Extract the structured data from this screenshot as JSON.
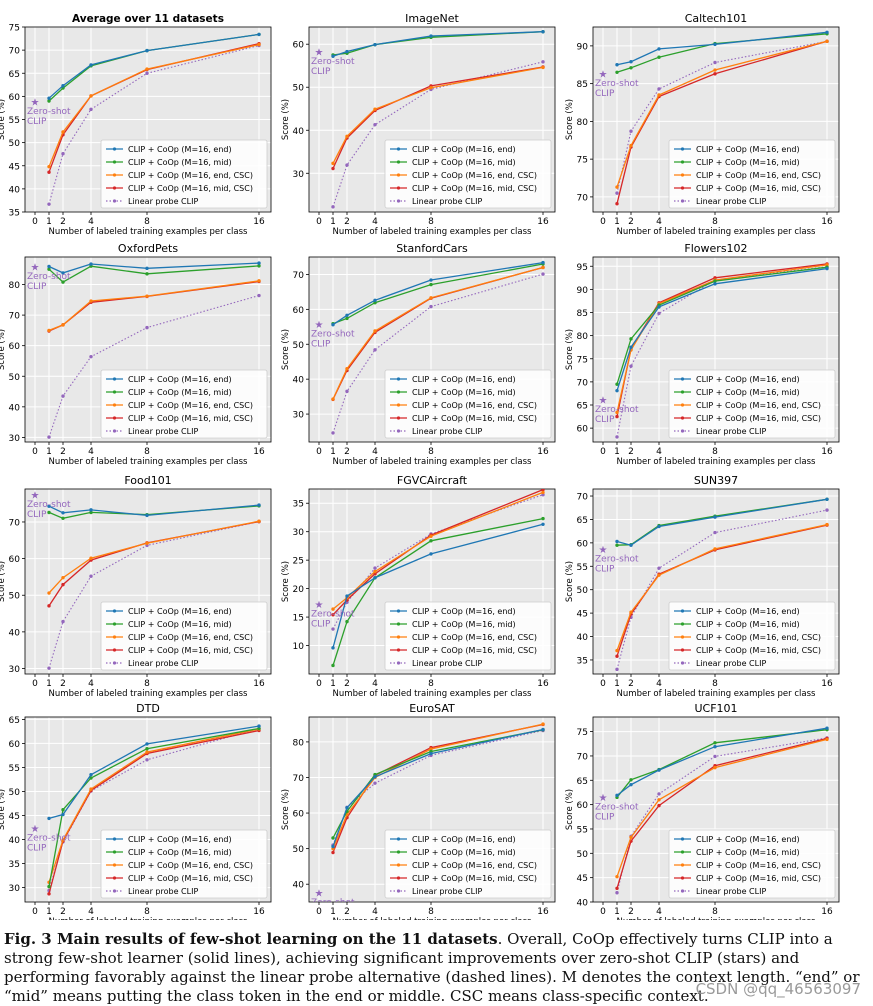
{
  "caption": {
    "lead": "Fig. 3 Main results of few-shot learning on the 11 datasets",
    "text": ". Overall, CoOp effectively turns CLIP into a strong few-shot learner (solid lines), achieving significant improvements over zero-shot CLIP (stars) and performing favorably against the linear probe alternative (dashed lines). M denotes the context length. “end” or “mid” means putting the class token in the end or middle. CSC means class-specific context."
  },
  "watermark": "CSDN @qq_46563097",
  "legend_labels": [
    "CLIP + CoOp (M=16, end)",
    "CLIP + CoOp (M=16, mid)",
    "CLIP + CoOp (M=16, end, CSC)",
    "CLIP + CoOp (M=16, mid, CSC)",
    "Linear probe CLIP"
  ],
  "series_colors": [
    "#1f77b4",
    "#2ca02c",
    "#ff7f0e",
    "#d62728",
    "#9467bd"
  ],
  "zero_shot_label": "Zero-shot CLIP",
  "chart_data": [
    {
      "type": "line",
      "title": "Average over 11 datasets",
      "title_bold": true,
      "xlabel": "Number of labeled training examples per class",
      "ylabel": "Score (%)",
      "x": [
        1,
        2,
        4,
        8,
        16
      ],
      "xticks": [
        0,
        1,
        2,
        4,
        8,
        16
      ],
      "ylim": [
        35,
        75
      ],
      "yticks": [
        35,
        40,
        45,
        50,
        55,
        60,
        65,
        70,
        75
      ],
      "zero_shot": 58.8,
      "series": [
        {
          "name": "CLIP + CoOp (M=16, end)",
          "values": [
            59.6,
            62.3,
            66.8,
            69.9,
            73.4
          ]
        },
        {
          "name": "CLIP + CoOp (M=16, mid)",
          "values": [
            59.0,
            61.8,
            66.6,
            69.9,
            73.4
          ]
        },
        {
          "name": "CLIP + CoOp (M=16, end, CSC)",
          "values": [
            44.8,
            52.3,
            60.1,
            65.9,
            71.2
          ]
        },
        {
          "name": "CLIP + CoOp (M=16, mid, CSC)",
          "values": [
            43.6,
            51.7,
            60.1,
            65.8,
            71.4
          ]
        },
        {
          "name": "Linear probe CLIP",
          "values": [
            36.7,
            47.6,
            57.2,
            65.0,
            71.0
          ]
        }
      ]
    },
    {
      "type": "line",
      "title": "ImageNet",
      "title_bold": false,
      "xlabel": "Number of labeled training examples per class",
      "ylabel": "Score (%)",
      "x": [
        1,
        2,
        4,
        8,
        16
      ],
      "xticks": [
        0,
        1,
        2,
        4,
        8,
        16
      ],
      "ylim": [
        21,
        64
      ],
      "yticks": [
        30,
        40,
        50,
        60
      ],
      "zero_shot": 58.2,
      "series": [
        {
          "name": "CLIP + CoOp (M=16, end)",
          "values": [
            57.2,
            58.3,
            59.9,
            61.9,
            62.9
          ]
        },
        {
          "name": "CLIP + CoOp (M=16, mid)",
          "values": [
            57.5,
            57.9,
            59.9,
            61.6,
            62.9
          ]
        },
        {
          "name": "CLIP + CoOp (M=16, end, CSC)",
          "values": [
            32.3,
            38.6,
            44.9,
            49.9,
            54.6
          ]
        },
        {
          "name": "CLIP + CoOp (M=16, mid, CSC)",
          "values": [
            31.1,
            38.2,
            44.6,
            50.3,
            54.7
          ]
        },
        {
          "name": "Linear probe CLIP",
          "values": [
            22.2,
            31.9,
            41.3,
            49.5,
            55.9
          ]
        }
      ]
    },
    {
      "type": "line",
      "title": "Caltech101",
      "title_bold": false,
      "xlabel": "Number of labeled training examples per class",
      "ylabel": "Score (%)",
      "x": [
        1,
        2,
        4,
        8,
        16
      ],
      "xticks": [
        0,
        1,
        2,
        4,
        8,
        16
      ],
      "ylim": [
        68,
        92.5
      ],
      "yticks": [
        70,
        75,
        80,
        85,
        90
      ],
      "zero_shot": 86.3,
      "series": [
        {
          "name": "CLIP + CoOp (M=16, end)",
          "values": [
            87.5,
            87.9,
            89.6,
            90.2,
            91.8
          ]
        },
        {
          "name": "CLIP + CoOp (M=16, mid)",
          "values": [
            86.5,
            87.1,
            88.5,
            90.3,
            91.6
          ]
        },
        {
          "name": "CLIP + CoOp (M=16, end, CSC)",
          "values": [
            71.3,
            76.8,
            83.5,
            86.8,
            90.6
          ]
        },
        {
          "name": "CLIP + CoOp (M=16, mid, CSC)",
          "values": [
            69.1,
            76.6,
            83.3,
            86.3,
            90.6
          ]
        },
        {
          "name": "Linear probe CLIP",
          "values": [
            70.5,
            78.7,
            84.3,
            87.8,
            90.6
          ]
        }
      ]
    },
    {
      "type": "line",
      "title": "OxfordPets",
      "title_bold": false,
      "xlabel": "Number of labeled training examples per class",
      "ylabel": "Score (%)",
      "x": [
        1,
        2,
        4,
        8,
        16
      ],
      "xticks": [
        0,
        1,
        2,
        4,
        8,
        16
      ],
      "ylim": [
        28.5,
        89
      ],
      "yticks": [
        30,
        40,
        50,
        60,
        70,
        80
      ],
      "zero_shot": 85.8,
      "series": [
        {
          "name": "CLIP + CoOp (M=16, end)",
          "values": [
            85.9,
            83.8,
            86.7,
            85.3,
            87.0
          ]
        },
        {
          "name": "CLIP + CoOp (M=16, mid)",
          "values": [
            85.0,
            80.8,
            86.0,
            83.5,
            86.1
          ]
        },
        {
          "name": "CLIP + CoOp (M=16, end, CSC)",
          "values": [
            65.0,
            66.8,
            74.6,
            76.2,
            81.2
          ]
        },
        {
          "name": "CLIP + CoOp (M=16, mid, CSC)",
          "values": [
            64.8,
            66.8,
            74.2,
            76.1,
            81.0
          ]
        },
        {
          "name": "Linear probe CLIP",
          "values": [
            30.1,
            43.5,
            56.4,
            65.9,
            76.4
          ]
        }
      ]
    },
    {
      "type": "line",
      "title": "StanfordCars",
      "title_bold": false,
      "xlabel": "Number of labeled training examples per class",
      "ylabel": "Score (%)",
      "x": [
        1,
        2,
        4,
        8,
        16
      ],
      "xticks": [
        0,
        1,
        2,
        4,
        8,
        16
      ],
      "ylim": [
        22,
        75
      ],
      "yticks": [
        30,
        40,
        50,
        60,
        70
      ],
      "zero_shot": 55.6,
      "series": [
        {
          "name": "CLIP + CoOp (M=16, end)",
          "values": [
            55.6,
            58.3,
            62.6,
            68.4,
            73.4
          ]
        },
        {
          "name": "CLIP + CoOp (M=16, mid)",
          "values": [
            55.9,
            57.4,
            61.9,
            67.1,
            73.0
          ]
        },
        {
          "name": "CLIP + CoOp (M=16, end, CSC)",
          "values": [
            34.3,
            43.0,
            53.8,
            63.3,
            72.0
          ]
        },
        {
          "name": "CLIP + CoOp (M=16, mid, CSC)",
          "values": [
            34.2,
            42.5,
            53.4,
            63.2,
            72.0
          ]
        },
        {
          "name": "Linear probe CLIP",
          "values": [
            24.6,
            36.5,
            48.4,
            60.8,
            70.1
          ]
        }
      ]
    },
    {
      "type": "line",
      "title": "Flowers102",
      "title_bold": false,
      "xlabel": "Number of labeled training examples per class",
      "ylabel": "Score (%)",
      "x": [
        1,
        2,
        4,
        8,
        16
      ],
      "xticks": [
        0,
        1,
        2,
        4,
        8,
        16
      ],
      "ylim": [
        57,
        97
      ],
      "yticks": [
        60,
        65,
        70,
        75,
        80,
        85,
        90,
        95
      ],
      "zero_shot": 66.1,
      "series": [
        {
          "name": "CLIP + CoOp (M=16, end)",
          "values": [
            68.1,
            77.5,
            86.2,
            91.2,
            94.5
          ]
        },
        {
          "name": "CLIP + CoOp (M=16, mid)",
          "values": [
            69.5,
            79.3,
            86.6,
            91.8,
            94.8
          ]
        },
        {
          "name": "CLIP + CoOp (M=16, end, CSC)",
          "values": [
            63.4,
            76.9,
            86.9,
            92.0,
            95.3
          ]
        },
        {
          "name": "CLIP + CoOp (M=16, mid, CSC)",
          "values": [
            62.5,
            77.1,
            87.1,
            92.5,
            95.5
          ]
        },
        {
          "name": "Linear probe CLIP",
          "values": [
            58.1,
            73.4,
            84.8,
            92.0,
            94.9
          ]
        }
      ]
    },
    {
      "type": "line",
      "title": "Food101",
      "title_bold": false,
      "xlabel": "Number of labeled training examples per class",
      "ylabel": "Score (%)",
      "x": [
        1,
        2,
        4,
        8,
        16
      ],
      "xticks": [
        0,
        1,
        2,
        4,
        8,
        16
      ],
      "ylim": [
        28.5,
        79
      ],
      "yticks": [
        30,
        40,
        50,
        60,
        70
      ],
      "zero_shot": 77.3,
      "series": [
        {
          "name": "CLIP + CoOp (M=16, end)",
          "values": [
            74.3,
            72.5,
            73.3,
            71.8,
            74.6
          ]
        },
        {
          "name": "CLIP + CoOp (M=16, mid)",
          "values": [
            72.6,
            71.0,
            72.6,
            72.0,
            74.4
          ]
        },
        {
          "name": "CLIP + CoOp (M=16, end, CSC)",
          "values": [
            50.6,
            54.8,
            60.1,
            64.2,
            70.2
          ]
        },
        {
          "name": "CLIP + CoOp (M=16, mid, CSC)",
          "values": [
            47.1,
            52.9,
            59.6,
            64.3,
            70.1
          ]
        },
        {
          "name": "Linear probe CLIP",
          "values": [
            30.1,
            42.8,
            55.2,
            63.6,
            70.1
          ]
        }
      ]
    },
    {
      "type": "line",
      "title": "FGVCAircraft",
      "title_bold": false,
      "xlabel": "Number of labeled training examples per class",
      "ylabel": "Score (%)",
      "x": [
        1,
        2,
        4,
        8,
        16
      ],
      "xticks": [
        0,
        1,
        2,
        4,
        8,
        16
      ],
      "ylim": [
        5,
        37.5
      ],
      "yticks": [
        10,
        15,
        20,
        25,
        30,
        35
      ],
      "zero_shot": 17.2,
      "series": [
        {
          "name": "CLIP + CoOp (M=16, end)",
          "values": [
            9.6,
            18.7,
            21.9,
            26.1,
            31.3
          ]
        },
        {
          "name": "CLIP + CoOp (M=16, mid)",
          "values": [
            6.5,
            14.2,
            21.9,
            28.4,
            32.3
          ]
        },
        {
          "name": "CLIP + CoOp (M=16, end, CSC)",
          "values": [
            16.4,
            18.4,
            23.0,
            29.2,
            36.9
          ]
        },
        {
          "name": "CLIP + CoOp (M=16, mid, CSC)",
          "values": [
            15.4,
            18.0,
            22.6,
            29.4,
            37.4
          ]
        },
        {
          "name": "Linear probe CLIP",
          "values": [
            12.9,
            17.6,
            23.6,
            29.6,
            36.5
          ]
        }
      ]
    },
    {
      "type": "line",
      "title": "SUN397",
      "title_bold": false,
      "xlabel": "Number of labeled training examples per class",
      "ylabel": "Score (%)",
      "x": [
        1,
        2,
        4,
        8,
        16
      ],
      "xticks": [
        0,
        1,
        2,
        4,
        8,
        16
      ],
      "ylim": [
        32,
        71.5
      ],
      "yticks": [
        35,
        40,
        45,
        50,
        55,
        60,
        65,
        70
      ],
      "zero_shot": 58.6,
      "series": [
        {
          "name": "CLIP + CoOp (M=16, end)",
          "values": [
            60.3,
            59.5,
            63.5,
            65.5,
            69.3
          ]
        },
        {
          "name": "CLIP + CoOp (M=16, mid)",
          "values": [
            59.5,
            59.6,
            63.7,
            65.7,
            69.3
          ]
        },
        {
          "name": "CLIP + CoOp (M=16, end, CSC)",
          "values": [
            37.0,
            45.2,
            53.1,
            58.7,
            63.9
          ]
        },
        {
          "name": "CLIP + CoOp (M=16, mid, CSC)",
          "values": [
            35.8,
            44.8,
            53.3,
            58.5,
            63.8
          ]
        },
        {
          "name": "Linear probe CLIP",
          "values": [
            33.0,
            44.1,
            54.6,
            62.2,
            67.0
          ]
        }
      ]
    },
    {
      "type": "line",
      "title": "DTD",
      "title_bold": false,
      "xlabel": "Number of labeled training examples per class",
      "ylabel": "Score (%)",
      "x": [
        1,
        2,
        4,
        8,
        16
      ],
      "xticks": [
        0,
        1,
        2,
        4,
        8,
        16
      ],
      "ylim": [
        27,
        65.5
      ],
      "yticks": [
        30,
        35,
        40,
        45,
        50,
        55,
        60,
        65
      ],
      "zero_shot": 42.3,
      "series": [
        {
          "name": "CLIP + CoOp (M=16, end)",
          "values": [
            44.4,
            45.2,
            53.5,
            59.9,
            63.6
          ]
        },
        {
          "name": "CLIP + CoOp (M=16, mid)",
          "values": [
            30.2,
            46.2,
            52.8,
            58.9,
            63.1
          ]
        },
        {
          "name": "CLIP + CoOp (M=16, end, CSC)",
          "values": [
            31.1,
            39.9,
            50.5,
            58.2,
            63.0
          ]
        },
        {
          "name": "CLIP + CoOp (M=16, mid, CSC)",
          "values": [
            28.7,
            39.7,
            50.2,
            57.9,
            62.7
          ]
        },
        {
          "name": "Linear probe CLIP",
          "values": [
            29.4,
            39.5,
            50.1,
            56.6,
            63.1
          ]
        }
      ]
    },
    {
      "type": "line",
      "title": "EuroSAT",
      "title_bold": false,
      "xlabel": "Number of labeled training examples per class",
      "ylabel": "Score (%)",
      "x": [
        1,
        2,
        4,
        8,
        16
      ],
      "xticks": [
        0,
        1,
        2,
        4,
        8,
        16
      ],
      "ylim": [
        35,
        87
      ],
      "yticks": [
        40,
        50,
        60,
        70,
        80
      ],
      "zero_shot": 37.6,
      "series": [
        {
          "name": "CLIP + CoOp (M=16, end)",
          "values": [
            50.6,
            61.5,
            70.2,
            76.7,
            83.5
          ]
        },
        {
          "name": "CLIP + CoOp (M=16, mid)",
          "values": [
            53.0,
            60.5,
            70.8,
            77.3,
            83.4
          ]
        },
        {
          "name": "CLIP + CoOp (M=16, end, CSC)",
          "values": [
            50.0,
            59.6,
            70.0,
            78.0,
            85.0
          ]
        },
        {
          "name": "CLIP + CoOp (M=16, mid, CSC)",
          "values": [
            48.9,
            58.7,
            70.6,
            78.4,
            84.9
          ]
        },
        {
          "name": "Linear probe CLIP",
          "values": [
            51.0,
            61.6,
            68.4,
            76.2,
            83.2
          ]
        }
      ]
    },
    {
      "type": "line",
      "title": "UCF101",
      "title_bold": false,
      "xlabel": "Number of labeled training examples per class",
      "ylabel": "Score (%)",
      "x": [
        1,
        2,
        4,
        8,
        16
      ],
      "xticks": [
        0,
        1,
        2,
        4,
        8,
        16
      ],
      "ylim": [
        40,
        78
      ],
      "yticks": [
        40,
        45,
        50,
        55,
        60,
        65,
        70,
        75
      ],
      "zero_shot": 61.5,
      "series": [
        {
          "name": "CLIP + CoOp (M=16, end)",
          "values": [
            61.9,
            64.1,
            67.1,
            71.9,
            75.7
          ]
        },
        {
          "name": "CLIP + CoOp (M=16, mid)",
          "values": [
            61.5,
            65.1,
            67.2,
            72.7,
            75.4
          ]
        },
        {
          "name": "CLIP + CoOp (M=16, end, CSC)",
          "values": [
            45.2,
            53.3,
            61.0,
            67.6,
            73.4
          ]
        },
        {
          "name": "CLIP + CoOp (M=16, mid, CSC)",
          "values": [
            42.8,
            52.5,
            59.8,
            68.0,
            73.6
          ]
        },
        {
          "name": "Linear probe CLIP",
          "values": [
            41.9,
            53.5,
            62.2,
            69.9,
            73.7
          ]
        }
      ]
    }
  ]
}
